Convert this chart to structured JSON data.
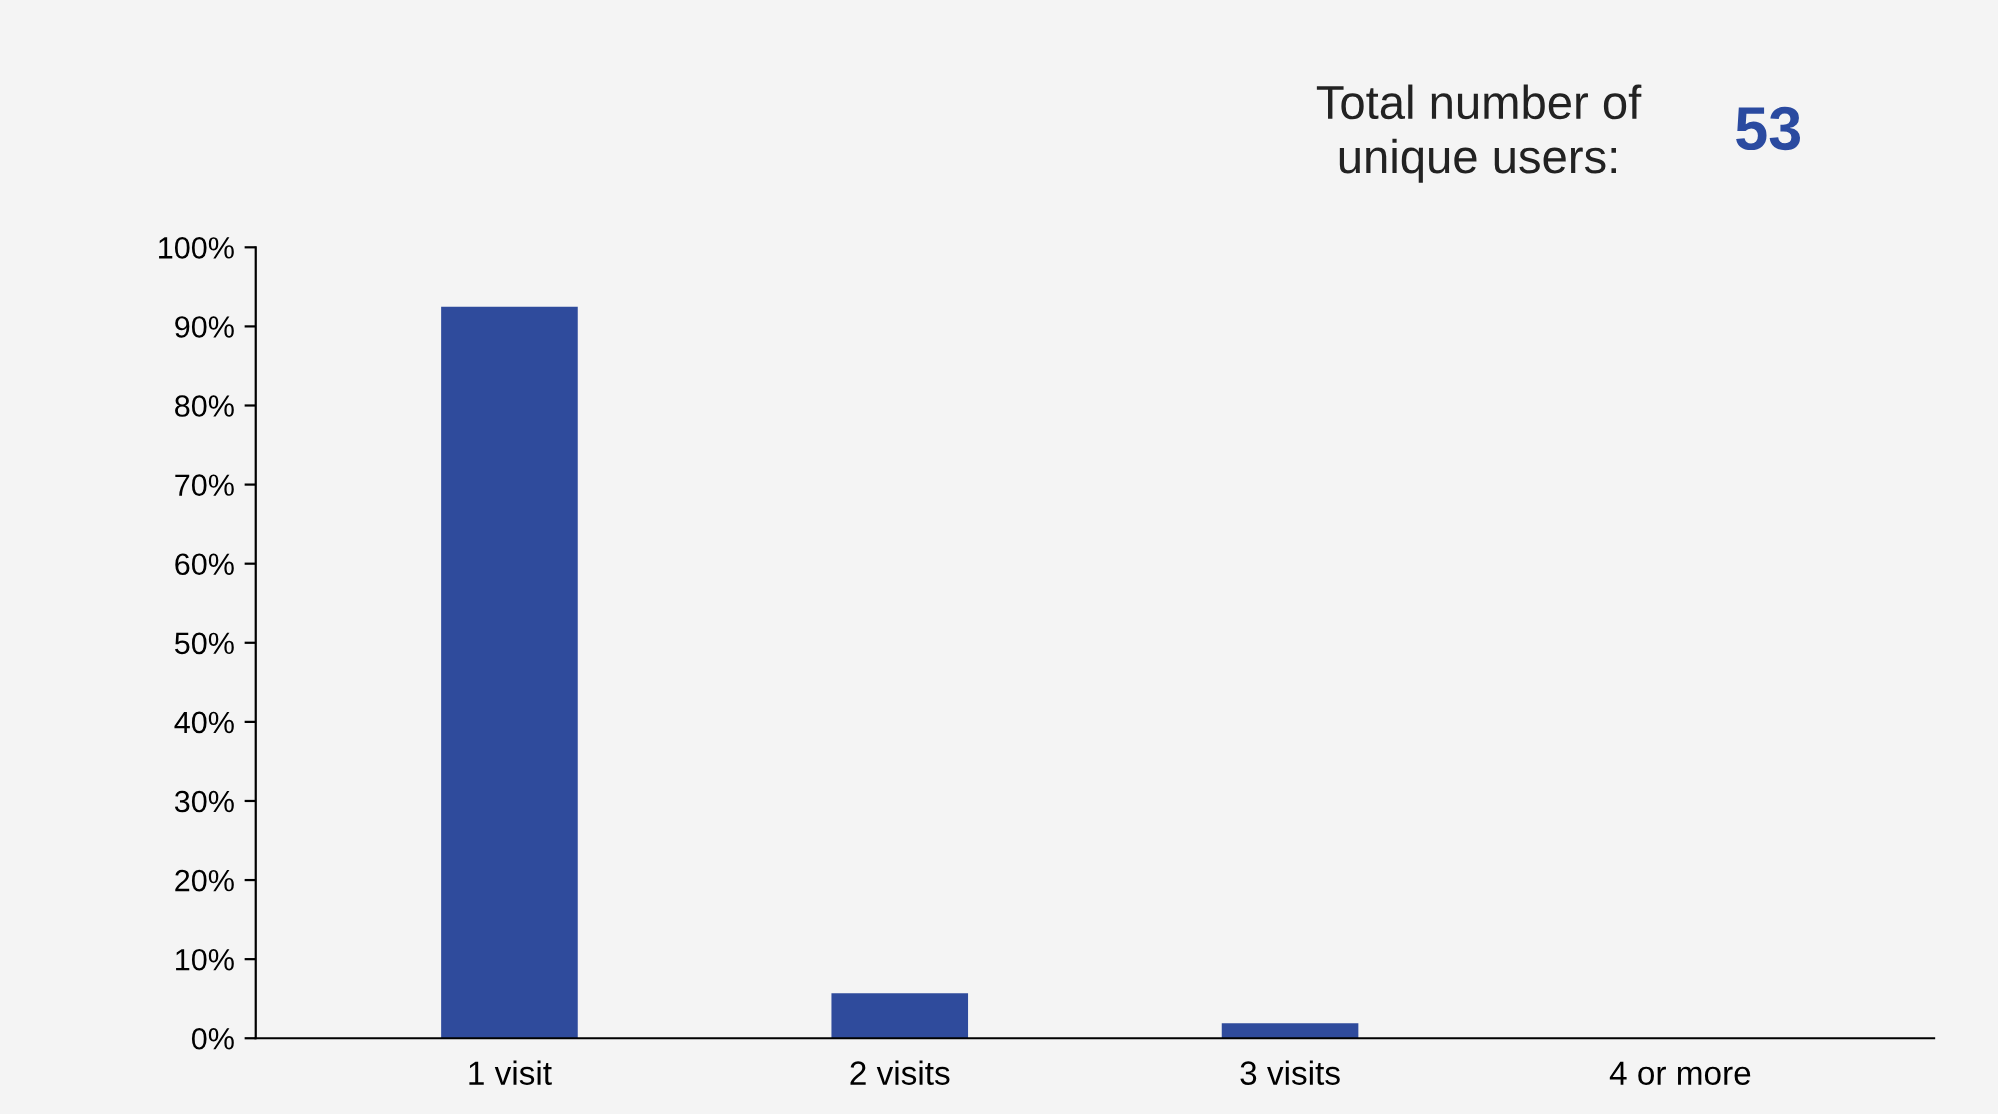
{
  "chart_data": {
    "type": "bar",
    "categories": [
      "1 visit",
      "2 visits",
      "3 visits",
      "4 or more"
    ],
    "values": [
      92.5,
      5.7,
      1.9,
      0
    ],
    "color": "#2f4b9c",
    "ylim": [
      0,
      100
    ],
    "yticks": [
      {
        "value": 0,
        "label": "0%"
      },
      {
        "value": 10,
        "label": "10%"
      },
      {
        "value": 20,
        "label": "20%"
      },
      {
        "value": 30,
        "label": "30%"
      },
      {
        "value": 40,
        "label": "40%"
      },
      {
        "value": 50,
        "label": "50%"
      },
      {
        "value": 60,
        "label": "60%"
      },
      {
        "value": 70,
        "label": "70%"
      },
      {
        "value": 80,
        "label": "80%"
      },
      {
        "value": 90,
        "label": "90%"
      },
      {
        "value": 100,
        "label": "100%"
      }
    ],
    "grid": false,
    "annotations": [
      "Total number of\nunique users:",
      "53"
    ]
  }
}
